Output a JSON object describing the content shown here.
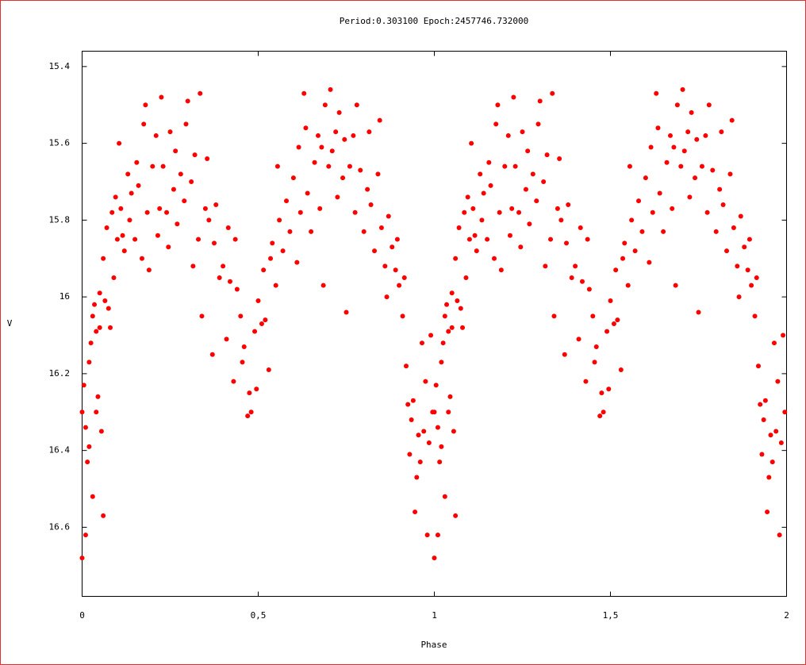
{
  "chart_data": {
    "type": "scatter",
    "title": "Period:0.303100 Epoch:2457746.732000",
    "x_label": "Phase",
    "y_label": "V",
    "color": "#ff0000",
    "xlim": [
      0,
      2
    ],
    "ylim": [
      16.78,
      15.36
    ],
    "xticks": [
      0,
      {
        "value": 0.5,
        "label": "0,5"
      },
      1,
      {
        "value": 1.5,
        "label": "1,5"
      },
      2
    ],
    "yticks": [
      15.4,
      15.6,
      15.8,
      16,
      16.2,
      16.4,
      16.6
    ],
    "grid": false,
    "x": [
      0,
      0,
      0.005,
      0.01,
      0.01,
      0.015,
      0.02,
      0.02,
      0.025,
      0.03,
      0.03,
      0.035,
      0.04,
      0.04,
      0.045,
      0.05,
      0.05,
      0.055,
      0.06,
      0.06,
      0.065,
      0.07,
      0.075,
      0.08,
      0.085,
      0.09,
      0.095,
      0.1,
      0.105,
      0.11,
      0.115,
      0.12,
      0.13,
      0.135,
      0.14,
      0.15,
      0.155,
      0.16,
      0.17,
      0.175,
      0.18,
      0.185,
      0.19,
      0.2,
      0.21,
      0.215,
      0.22,
      0.225,
      0.23,
      0.24,
      0.245,
      0.25,
      0.26,
      0.265,
      0.27,
      0.28,
      0.29,
      0.295,
      0.3,
      0.31,
      0.315,
      0.32,
      0.33,
      0.335,
      0.34,
      0.35,
      0.355,
      0.36,
      0.37,
      0.375,
      0.38,
      0.39,
      0.4,
      0.41,
      0.415,
      0.42,
      0.43,
      0.435,
      0.44,
      0.45,
      0.455,
      0.46,
      0.47,
      0.475,
      0.48,
      0.49,
      0.495,
      0.5,
      0.51,
      0.515,
      0.52,
      0.53,
      0.535,
      0.54,
      0.55,
      0.555,
      0.56,
      0.57,
      0.58,
      0.59,
      0.6,
      0.61,
      0.615,
      0.62,
      0.63,
      0.635,
      0.64,
      0.65,
      0.66,
      0.67,
      0.675,
      0.68,
      0.685,
      0.69,
      0.7,
      0.705,
      0.71,
      0.72,
      0.725,
      0.73,
      0.74,
      0.745,
      0.75,
      0.76,
      0.77,
      0.775,
      0.78,
      0.79,
      0.8,
      0.81,
      0.815,
      0.82,
      0.83,
      0.84,
      0.845,
      0.85,
      0.86,
      0.865,
      0.87,
      0.88,
      0.89,
      0.895,
      0.9,
      0.91,
      0.915,
      0.92,
      0.925,
      0.93,
      0.935,
      0.94,
      0.945,
      0.95,
      0.955,
      0.96,
      0.965,
      0.97,
      0.975,
      0.98,
      0.985,
      0.99,
      0.995,
      1,
      1,
      1.005,
      1.01,
      1.01,
      1.015,
      1.02,
      1.02,
      1.025,
      1.03,
      1.03,
      1.035,
      1.04,
      1.04,
      1.045,
      1.05,
      1.05,
      1.055,
      1.06,
      1.06,
      1.065,
      1.07,
      1.075,
      1.08,
      1.085,
      1.09,
      1.095,
      1.1,
      1.105,
      1.11,
      1.115,
      1.12,
      1.13,
      1.135,
      1.14,
      1.15,
      1.155,
      1.16,
      1.17,
      1.175,
      1.18,
      1.185,
      1.19,
      1.2,
      1.21,
      1.215,
      1.22,
      1.225,
      1.23,
      1.24,
      1.245,
      1.25,
      1.26,
      1.265,
      1.27,
      1.28,
      1.29,
      1.295,
      1.3,
      1.31,
      1.315,
      1.32,
      1.33,
      1.335,
      1.34,
      1.35,
      1.355,
      1.36,
      1.37,
      1.375,
      1.38,
      1.39,
      1.4,
      1.41,
      1.415,
      1.42,
      1.43,
      1.435,
      1.44,
      1.45,
      1.455,
      1.46,
      1.47,
      1.475,
      1.48,
      1.49,
      1.495,
      1.5,
      1.51,
      1.515,
      1.52,
      1.53,
      1.535,
      1.54,
      1.55,
      1.555,
      1.56,
      1.57,
      1.58,
      1.59,
      1.6,
      1.61,
      1.615,
      1.62,
      1.63,
      1.635,
      1.64,
      1.65,
      1.66,
      1.67,
      1.675,
      1.68,
      1.685,
      1.69,
      1.7,
      1.705,
      1.71,
      1.72,
      1.725,
      1.73,
      1.74,
      1.745,
      1.75,
      1.76,
      1.77,
      1.775,
      1.78,
      1.79,
      1.8,
      1.81,
      1.815,
      1.82,
      1.83,
      1.84,
      1.845,
      1.85,
      1.86,
      1.865,
      1.87,
      1.88,
      1.89,
      1.895,
      1.9,
      1.91,
      1.915,
      1.92,
      1.925,
      1.93,
      1.935,
      1.94,
      1.945,
      1.95,
      1.955,
      1.96,
      1.965,
      1.97,
      1.975,
      1.98,
      1.985,
      1.99,
      1.995
    ],
    "values": [
      16.68,
      16.3,
      16.23,
      16.62,
      16.34,
      16.43,
      16.39,
      16.17,
      16.12,
      16.52,
      16.05,
      16.02,
      16.3,
      16.09,
      16.26,
      15.99,
      16.08,
      16.35,
      16.57,
      15.9,
      16.01,
      15.82,
      16.03,
      16.08,
      15.78,
      15.95,
      15.74,
      15.85,
      15.6,
      15.77,
      15.84,
      15.88,
      15.68,
      15.8,
      15.73,
      15.85,
      15.65,
      15.71,
      15.9,
      15.55,
      15.5,
      15.78,
      15.93,
      15.66,
      15.58,
      15.84,
      15.77,
      15.48,
      15.66,
      15.78,
      15.87,
      15.57,
      15.72,
      15.62,
      15.81,
      15.68,
      15.75,
      15.55,
      15.49,
      15.7,
      15.92,
      15.63,
      15.85,
      15.47,
      16.05,
      15.77,
      15.64,
      15.8,
      16.15,
      15.86,
      15.76,
      15.95,
      15.92,
      16.11,
      15.82,
      15.96,
      16.22,
      15.85,
      15.98,
      16.05,
      16.17,
      16.13,
      16.31,
      16.25,
      16.3,
      16.09,
      16.24,
      16.01,
      16.07,
      15.93,
      16.06,
      16.19,
      15.9,
      15.86,
      15.97,
      15.66,
      15.8,
      15.88,
      15.75,
      15.83,
      15.69,
      15.91,
      15.61,
      15.78,
      15.47,
      15.56,
      15.73,
      15.83,
      15.65,
      15.58,
      15.77,
      15.61,
      15.97,
      15.5,
      15.66,
      15.46,
      15.62,
      15.57,
      15.74,
      15.52,
      15.69,
      15.59,
      16.04,
      15.66,
      15.58,
      15.78,
      15.5,
      15.67,
      15.83,
      15.72,
      15.57,
      15.76,
      15.88,
      15.68,
      15.54,
      15.82,
      15.92,
      16.0,
      15.79,
      15.87,
      15.93,
      15.85,
      15.97,
      16.05,
      15.95,
      16.18,
      16.28,
      16.41,
      16.32,
      16.27,
      16.56,
      16.47,
      16.36,
      16.43,
      16.12,
      16.35,
      16.22,
      16.62,
      16.38,
      16.1,
      16.3,
      16.68,
      16.3,
      16.23,
      16.62,
      16.34,
      16.43,
      16.39,
      16.17,
      16.12,
      16.52,
      16.05,
      16.02,
      16.3,
      16.09,
      16.26,
      15.99,
      16.08,
      16.35,
      16.57,
      15.9,
      16.01,
      15.82,
      16.03,
      16.08,
      15.78,
      15.95,
      15.74,
      15.85,
      15.6,
      15.77,
      15.84,
      15.88,
      15.68,
      15.8,
      15.73,
      15.85,
      15.65,
      15.71,
      15.9,
      15.55,
      15.5,
      15.78,
      15.93,
      15.66,
      15.58,
      15.84,
      15.77,
      15.48,
      15.66,
      15.78,
      15.87,
      15.57,
      15.72,
      15.62,
      15.81,
      15.68,
      15.75,
      15.55,
      15.49,
      15.7,
      15.92,
      15.63,
      15.85,
      15.47,
      16.05,
      15.77,
      15.64,
      15.8,
      16.15,
      15.86,
      15.76,
      15.95,
      15.92,
      16.11,
      15.82,
      15.96,
      16.22,
      15.85,
      15.98,
      16.05,
      16.17,
      16.13,
      16.31,
      16.25,
      16.3,
      16.09,
      16.24,
      16.01,
      16.07,
      15.93,
      16.06,
      16.19,
      15.9,
      15.86,
      15.97,
      15.66,
      15.8,
      15.88,
      15.75,
      15.83,
      15.69,
      15.91,
      15.61,
      15.78,
      15.47,
      15.56,
      15.73,
      15.83,
      15.65,
      15.58,
      15.77,
      15.61,
      15.97,
      15.5,
      15.66,
      15.46,
      15.62,
      15.57,
      15.74,
      15.52,
      15.69,
      15.59,
      16.04,
      15.66,
      15.58,
      15.78,
      15.5,
      15.67,
      15.83,
      15.72,
      15.57,
      15.76,
      15.88,
      15.68,
      15.54,
      15.82,
      15.92,
      16.0,
      15.79,
      15.87,
      15.93,
      15.85,
      15.97,
      16.05,
      15.95,
      16.18,
      16.28,
      16.41,
      16.32,
      16.27,
      16.56,
      16.47,
      16.36,
      16.43,
      16.12,
      16.35,
      16.22,
      16.62,
      16.38,
      16.1,
      16.3
    ]
  }
}
